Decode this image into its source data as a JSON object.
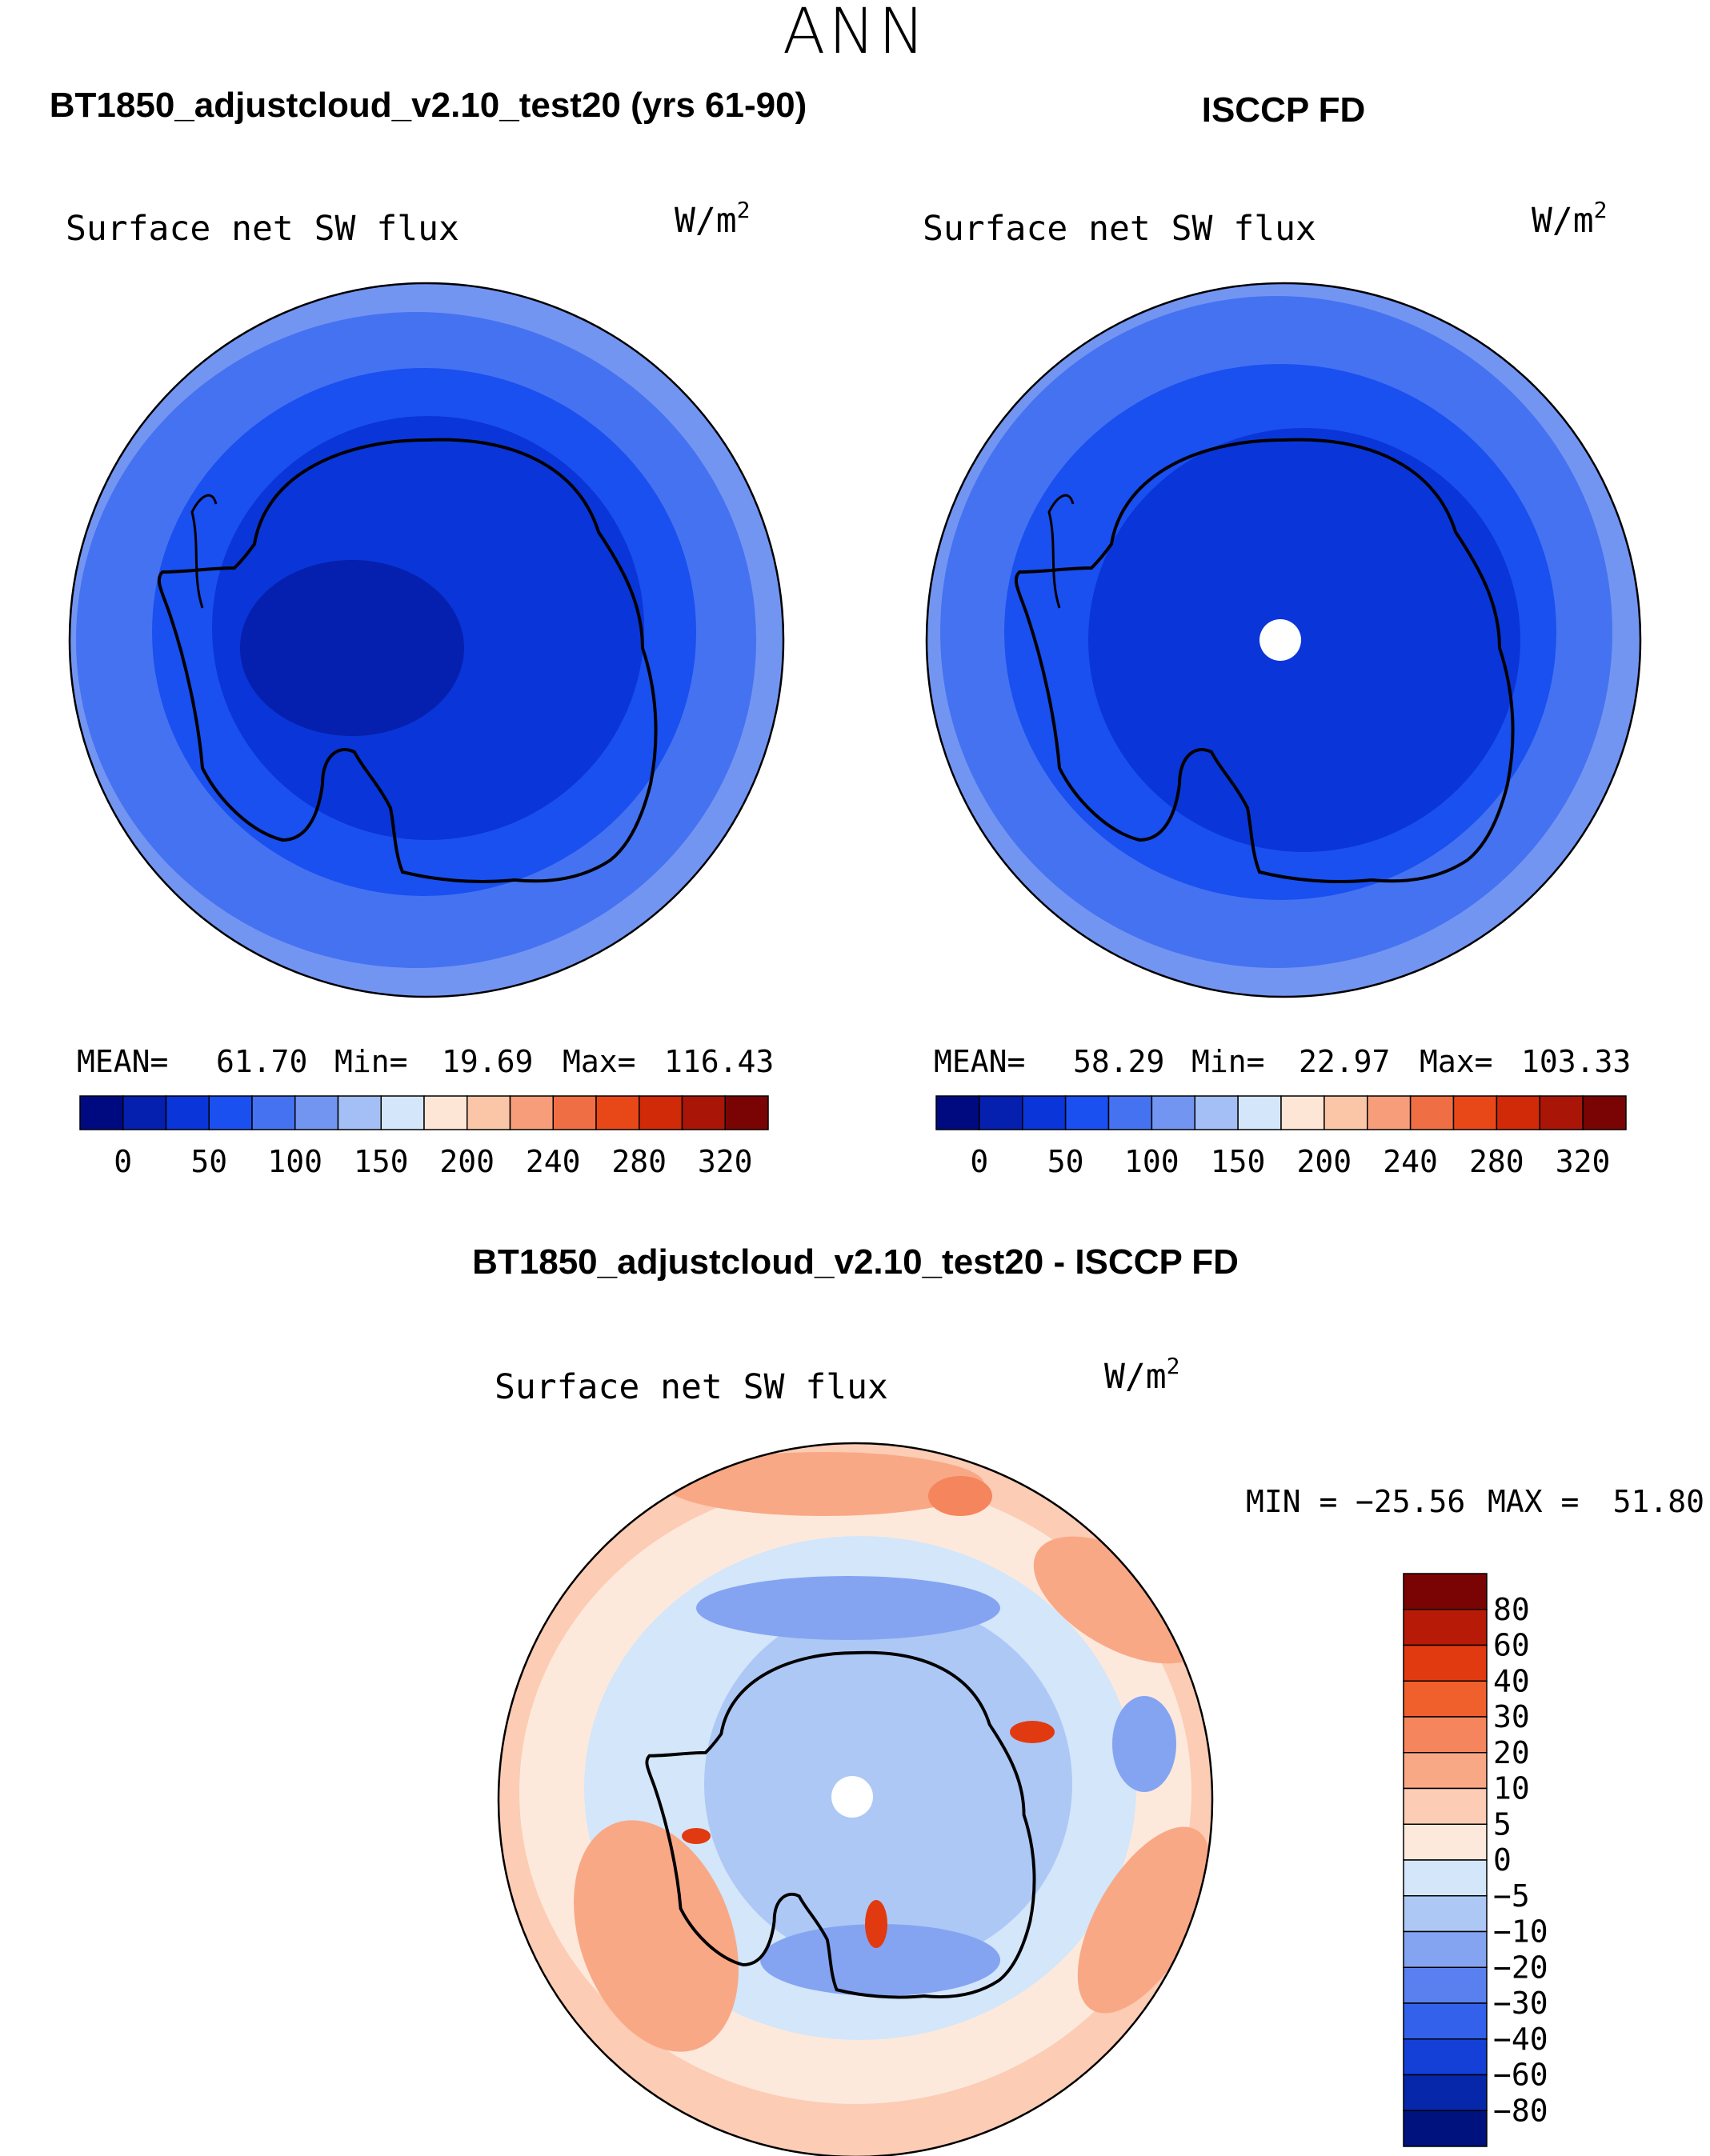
{
  "figure": {
    "season": "ANN"
  },
  "chart_data": [
    {
      "type": "heatmap",
      "projection": "south-polar-stereographic",
      "panel_title": "BT1850_adjustcloud_v2.10_test20 (yrs 61-90)",
      "variable": "Surface net SW flux",
      "units_base": "W/m",
      "units_exp": "2",
      "stats": {
        "mean_label": "MEAN=",
        "mean": "61.70",
        "min_label": "Min=",
        "min": "19.69",
        "max_label": "Max=",
        "max": "116.43"
      },
      "colorbar": {
        "orientation": "horizontal",
        "colors": [
          "#000a80",
          "#0520ae",
          "#0a35d8",
          "#1a4ff0",
          "#4572f0",
          "#7395f2",
          "#a3bff5",
          "#d4e7fa",
          "#fde6d6",
          "#fbc5a8",
          "#f79d7a",
          "#f06e44",
          "#e84818",
          "#d02a08",
          "#a91608",
          "#7a0404"
        ],
        "tick_labels": [
          "0",
          "50",
          "100",
          "150",
          "200",
          "240",
          "280",
          "320"
        ]
      },
      "field_levels": [
        "#7395f2",
        "#4572f0",
        "#1a4ff0",
        "#0a35d8",
        "#0520ae"
      ]
    },
    {
      "type": "heatmap",
      "projection": "south-polar-stereographic",
      "panel_title": "ISCCP FD",
      "variable": "Surface net SW flux",
      "units_base": "W/m",
      "units_exp": "2",
      "stats": {
        "mean_label": "MEAN=",
        "mean": "58.29",
        "min_label": "Min=",
        "min": "22.97",
        "max_label": "Max=",
        "max": "103.33"
      },
      "colorbar": {
        "orientation": "horizontal",
        "colors": [
          "#000a80",
          "#0520ae",
          "#0a35d8",
          "#1a4ff0",
          "#4572f0",
          "#7395f2",
          "#a3bff5",
          "#d4e7fa",
          "#fde6d6",
          "#fbc5a8",
          "#f79d7a",
          "#f06e44",
          "#e84818",
          "#d02a08",
          "#a91608",
          "#7a0404"
        ],
        "tick_labels": [
          "0",
          "50",
          "100",
          "150",
          "200",
          "240",
          "280",
          "320"
        ]
      },
      "field_levels": [
        "#7395f2",
        "#4572f0",
        "#1a4ff0",
        "#0a35d8"
      ]
    },
    {
      "type": "heatmap",
      "projection": "south-polar-stereographic",
      "panel_title": "BT1850_adjustcloud_v2.10_test20 - ISCCP FD",
      "variable": "Surface net SW flux",
      "units_base": "W/m",
      "units_exp": "2",
      "stats": {
        "min_label": "MIN =",
        "min": "−25.56",
        "max_label": "MAX =",
        "max": "51.80"
      },
      "colorbar": {
        "orientation": "vertical",
        "colors": [
          "#7a0404",
          "#b71b08",
          "#e23a10",
          "#f0602c",
          "#f5855c",
          "#f9a886",
          "#fcccb4",
          "#fde9dc",
          "#d3e6fa",
          "#adc8f5",
          "#84a4f2",
          "#5a80ef",
          "#3461ec",
          "#1440d8",
          "#0627a9",
          "#00127e"
        ],
        "tick_labels": [
          "80",
          "60",
          "40",
          "30",
          "20",
          "10",
          "5",
          "0",
          "−5",
          "−10",
          "−20",
          "−30",
          "−40",
          "−60",
          "−80"
        ]
      },
      "field_levels": {
        "positive": [
          "#fde9dc",
          "#fcccb4",
          "#f9a886",
          "#f5855c",
          "#e23a10"
        ],
        "negative": [
          "#d3e6fa",
          "#adc8f5",
          "#84a4f2",
          "#5a80ef"
        ]
      }
    }
  ]
}
